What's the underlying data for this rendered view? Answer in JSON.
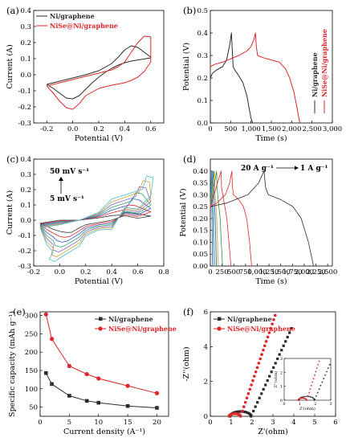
{
  "colors": {
    "black": "#2b2b2b",
    "red": "#e0262a",
    "gray": "#505050"
  },
  "chart_data": [
    {
      "id": "a",
      "panel_label": "(a)",
      "type": "line",
      "xlabel": "Potential (V)",
      "ylabel": "Current (A)",
      "xlim": [
        -0.3,
        0.7
      ],
      "ylim": [
        -0.3,
        0.4
      ],
      "xticks": [
        -0.2,
        0,
        0.2,
        0.4,
        0.6
      ],
      "xtick_labels": [
        "-0.2",
        "0.0",
        "0.2",
        "0.4",
        "0.6"
      ],
      "yticks": [
        -0.3,
        -0.2,
        -0.1,
        0,
        0.1,
        0.2,
        0.3,
        0.4
      ],
      "ytick_labels": [
        "-0.3",
        "-0.2",
        "-0.1",
        "0.0",
        "0.1",
        "0.2",
        "0.3",
        "0.4"
      ],
      "legend": "top-left",
      "series": [
        {
          "name": "Ni/graphene",
          "color": "#2b2b2b",
          "x": [
            -0.2,
            -0.1,
            0.0,
            0.1,
            0.2,
            0.3,
            0.35,
            0.4,
            0.45,
            0.5,
            0.55,
            0.6,
            0.6,
            0.55,
            0.5,
            0.45,
            0.4,
            0.35,
            0.3,
            0.25,
            0.2,
            0.15,
            0.1,
            0.05,
            0.0,
            -0.05,
            -0.1,
            -0.15,
            -0.2
          ],
          "y": [
            -0.06,
            -0.04,
            -0.02,
            0.0,
            0.025,
            0.07,
            0.11,
            0.155,
            0.18,
            0.17,
            0.14,
            0.11,
            0.105,
            0.098,
            0.092,
            0.085,
            0.075,
            0.06,
            0.04,
            0.015,
            -0.015,
            -0.05,
            -0.09,
            -0.13,
            -0.15,
            -0.145,
            -0.115,
            -0.085,
            -0.06
          ]
        },
        {
          "name": "NiSe@Ni/graphene",
          "color": "#e0262a",
          "x": [
            -0.2,
            -0.1,
            0.0,
            0.1,
            0.2,
            0.3,
            0.35,
            0.4,
            0.45,
            0.5,
            0.55,
            0.6,
            0.6,
            0.55,
            0.5,
            0.45,
            0.4,
            0.3,
            0.2,
            0.1,
            0.05,
            0.0,
            -0.05,
            -0.1,
            -0.15,
            -0.2
          ],
          "y": [
            -0.07,
            -0.05,
            -0.03,
            -0.01,
            0.01,
            0.03,
            0.05,
            0.08,
            0.14,
            0.2,
            0.24,
            0.235,
            0.08,
            0.02,
            -0.015,
            -0.035,
            -0.05,
            -0.065,
            -0.085,
            -0.13,
            -0.18,
            -0.215,
            -0.205,
            -0.165,
            -0.115,
            -0.07
          ]
        }
      ]
    },
    {
      "id": "b",
      "panel_label": "(b)",
      "type": "line",
      "xlabel": "Time (s)",
      "ylabel": "Potential (V)",
      "xlim": [
        0,
        3000
      ],
      "ylim": [
        0,
        0.5
      ],
      "xticks": [
        0,
        500,
        1000,
        1500,
        2000,
        2500,
        3000
      ],
      "xtick_labels": [
        "0",
        "500",
        "1,000",
        "1,500",
        "2,000",
        "2,500",
        "3,000"
      ],
      "yticks": [
        0,
        0.1,
        0.2,
        0.3,
        0.4,
        0.5
      ],
      "ytick_labels": [
        "0.0",
        "0.1",
        "0.2",
        "0.3",
        "0.4",
        "0.5"
      ],
      "legend": "right, vertical",
      "series": [
        {
          "name": "Ni/graphene",
          "color": "#2b2b2b",
          "x": [
            0,
            50,
            150,
            300,
            400,
            480,
            520,
            540,
            560,
            620,
            700,
            800,
            900,
            960,
            1000,
            1040
          ],
          "y": [
            0.2,
            0.22,
            0.235,
            0.25,
            0.28,
            0.35,
            0.4,
            0.32,
            0.25,
            0.23,
            0.21,
            0.18,
            0.12,
            0.06,
            0.02,
            0.0
          ]
        },
        {
          "name": "NiSe@Ni/graphene",
          "color": "#e0262a",
          "x": [
            0,
            100,
            300,
            500,
            700,
            900,
            1000,
            1070,
            1110,
            1130,
            1160,
            1300,
            1500,
            1700,
            1850,
            1950,
            2050,
            2130,
            2170,
            2200
          ],
          "y": [
            0.25,
            0.26,
            0.27,
            0.285,
            0.3,
            0.32,
            0.34,
            0.37,
            0.4,
            0.34,
            0.3,
            0.29,
            0.28,
            0.27,
            0.24,
            0.2,
            0.14,
            0.07,
            0.03,
            0.0
          ]
        }
      ]
    },
    {
      "id": "c",
      "panel_label": "(c)",
      "type": "line",
      "xlabel": "Potential (V)",
      "ylabel": "Current (A)",
      "xlim": [
        -0.2,
        0.8
      ],
      "ylim": [
        -0.3,
        0.4
      ],
      "xticks": [
        -0.2,
        0,
        0.2,
        0.4,
        0.6,
        0.8
      ],
      "xtick_labels": [
        "-0.2",
        "0.0",
        "0.2",
        "0.4",
        "0.6",
        "0.8"
      ],
      "yticks": [
        -0.3,
        -0.2,
        -0.1,
        0,
        0.1,
        0.2,
        0.3,
        0.4
      ],
      "ytick_labels": [
        "-0.3",
        "-0.2",
        "-0.1",
        "0.0",
        "0.1",
        "0.2",
        "0.3",
        "0.4"
      ],
      "annotations": [
        "50 mV s⁻¹",
        "5 mV s⁻¹"
      ],
      "scan_rates_peak": [
        0.05,
        0.1,
        0.14,
        0.18,
        0.22,
        0.26,
        0.29
      ],
      "series_colors": [
        "#3a3a3a",
        "#e0262a",
        "#2f57c9",
        "#2aa66a",
        "#8a5cc4",
        "#c9a227",
        "#48b8d8"
      ]
    },
    {
      "id": "d",
      "panel_label": "(d)",
      "type": "line",
      "xlabel": "Time (s)",
      "ylabel": "Potential (V)",
      "xlim": [
        0,
        2600
      ],
      "ylim": [
        0,
        0.45
      ],
      "xticks": [
        0,
        250,
        500,
        750,
        1000,
        1250,
        1500,
        1750,
        2000,
        2250,
        2500
      ],
      "xtick_labels": [
        "0",
        "250",
        "500",
        "750",
        "1,000",
        "1,250",
        "1,500",
        "1,750",
        "2,000",
        "2,250",
        "2,500"
      ],
      "yticks": [
        0,
        0.05,
        0.1,
        0.15,
        0.2,
        0.25,
        0.3,
        0.35,
        0.4
      ],
      "ytick_labels": [
        "0.00",
        "0.05",
        "0.10",
        "0.15",
        "0.20",
        "0.25",
        "0.30",
        "0.35",
        "0.40"
      ],
      "annotations": [
        "20 A g⁻¹",
        "1 A g⁻¹"
      ],
      "discharge_times": [
        45,
        70,
        95,
        130,
        170,
        260,
        440,
        880,
        2200
      ],
      "series_colors": [
        "#7a5cc4",
        "#2aa66a",
        "#48b8d8",
        "#2f57c9",
        "#c9a227",
        "#3a8a3a",
        "#e0262a",
        "#e0262a",
        "#2b2b2b"
      ]
    },
    {
      "id": "e",
      "panel_label": "(e)",
      "type": "line",
      "xlabel": "Current density (A⁻¹)",
      "ylabel": "Specific capacity (mAh g⁻¹)",
      "xlim": [
        0,
        22
      ],
      "ylim": [
        25,
        310
      ],
      "xticks": [
        0,
        5,
        10,
        15,
        20
      ],
      "xtick_labels": [
        "0",
        "5",
        "10",
        "15",
        "20"
      ],
      "yticks": [
        50,
        100,
        150,
        200,
        250,
        300
      ],
      "ytick_labels": [
        "50",
        "100",
        "150",
        "200",
        "250",
        "300"
      ],
      "legend": "top-right",
      "series": [
        {
          "name": "Ni/graphene",
          "color": "#2b2b2b",
          "marker": "square",
          "x": [
            1,
            2,
            5,
            8,
            10,
            15,
            20
          ],
          "y": [
            143,
            113,
            81,
            67,
            62,
            53,
            48
          ]
        },
        {
          "name": "NiSe@Ni/graphene",
          "color": "#e0262a",
          "marker": "circle",
          "x": [
            1,
            2,
            5,
            8,
            10,
            15,
            20
          ],
          "y": [
            303,
            236,
            162,
            140,
            128,
            108,
            88
          ]
        }
      ]
    },
    {
      "id": "f",
      "panel_label": "(f)",
      "type": "scatter",
      "xlabel": "Z'(ohm)",
      "ylabel": "-Z''(ohm)",
      "xlim": [
        0,
        6
      ],
      "ylim": [
        0,
        6
      ],
      "xticks": [
        0,
        1,
        2,
        3,
        4,
        5,
        6
      ],
      "xtick_labels": [
        "0",
        "1",
        "2",
        "3",
        "4",
        "5",
        "6"
      ],
      "yticks": [
        0,
        2,
        4,
        6
      ],
      "ytick_labels": [
        "0",
        "2",
        "4",
        "6"
      ],
      "legend": "top-left",
      "series": [
        {
          "name": "Ni/graphene",
          "color": "#2b2b2b",
          "marker": "square"
        },
        {
          "name": "NiSe@Ni/graphene",
          "color": "#e0262a",
          "marker": "circle"
        }
      ],
      "inset": {
        "xlabel": "Z'(ohm)",
        "ylabel": "Z''(ohm)",
        "xlim": [
          0,
          3
        ],
        "ylim": [
          0,
          3
        ],
        "xticks": [
          0,
          1,
          2,
          3
        ],
        "xtick_labels": [
          "0",
          "1",
          "2",
          "3"
        ],
        "yticks": [
          0,
          1,
          2,
          3
        ],
        "ytick_labels": [
          "0",
          "1",
          "2",
          "3"
        ]
      }
    }
  ]
}
